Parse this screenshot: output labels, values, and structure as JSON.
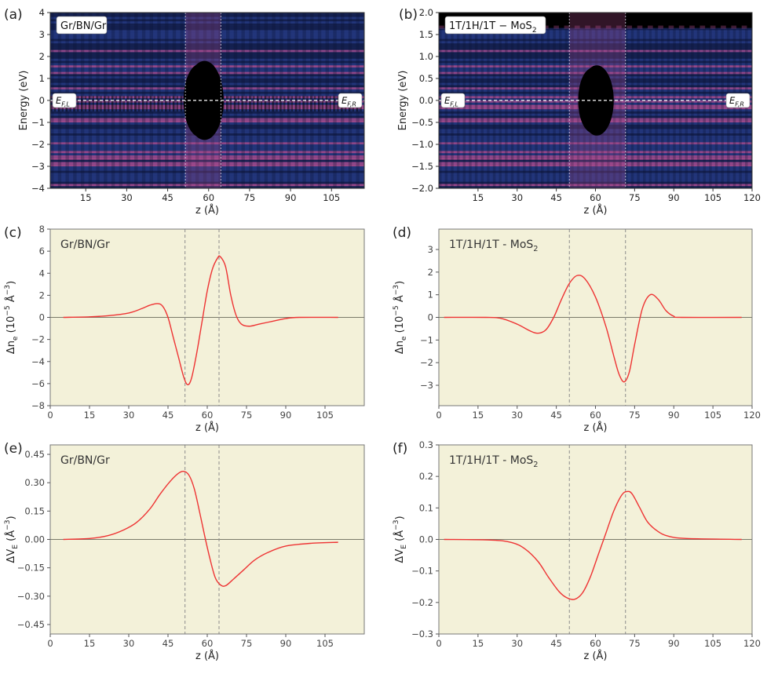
{
  "colors": {
    "panel_bg": "#f3f1d9",
    "curve": "#ee3333",
    "zero_line": "#7a7a6a",
    "dashed": "#8c8c8c",
    "heat_dark": "#0c1232",
    "heat_mid": "#22357a",
    "heat_pink": "#b04c8c",
    "heat_black": "#000000",
    "white": "#ffffff"
  },
  "chart_data": [
    {
      "panel": "(a)",
      "type": "heatmap",
      "label": "Gr/BN/Gr",
      "xlabel": "z (Å)",
      "ylabel": "Energy (eV)",
      "xlim": [
        2,
        117
      ],
      "ylim": [
        -4,
        4
      ],
      "xticks": [
        15,
        30,
        45,
        60,
        75,
        90,
        105
      ],
      "yticks": [
        -4,
        -3,
        -2,
        -1,
        0,
        1,
        2,
        3,
        4
      ],
      "ytick_labels": [
        "−4",
        "−3",
        "−2",
        "−1",
        "0",
        "1",
        "2",
        "3",
        "4"
      ],
      "fermi_left": "E_{F,L}",
      "fermi_right": "E_{F,R}",
      "fermi_energy": 0,
      "interfaces": [
        51.5,
        64.5
      ],
      "gap_region": {
        "z_center": 58.5,
        "z_halfwidth": 7,
        "e_min": -1.8,
        "e_max": 1.8
      },
      "stripe_period_E": 0.2,
      "ripple_period_z": 2.8,
      "fine_ripple_band": [
        -0.5,
        0.2
      ]
    },
    {
      "panel": "(b)",
      "type": "heatmap",
      "label": "1T/1H/1T − MoS2",
      "label_main": "1T/1H/1T − MoS",
      "label_sub": "2",
      "xlabel": "z (Å)",
      "ylabel": "Energy (eV)",
      "xlim": [
        0,
        120
      ],
      "ylim": [
        -2,
        2
      ],
      "xticks": [
        15,
        30,
        45,
        60,
        75,
        90,
        105,
        120
      ],
      "yticks": [
        -2.0,
        -1.5,
        -1.0,
        -0.5,
        0.0,
        0.5,
        1.0,
        1.5,
        2.0
      ],
      "ytick_labels": [
        "−2.0",
        "−1.5",
        "−1.0",
        "−0.5",
        "0.0",
        "0.5",
        "1.0",
        "1.5",
        "2.0"
      ],
      "fermi_left": "E_{F,L}",
      "fermi_right": "E_{F,R}",
      "fermi_energy": 0,
      "interfaces": [
        50.0,
        71.5
      ],
      "gap_region": {
        "z_center": 60.5,
        "z_halfwidth": 6.5,
        "e_min": -0.8,
        "e_max": 0.8
      },
      "top_gap_from": 1.65,
      "stripe_period_E": 0.1,
      "ripple_period_z": 2.3
    },
    {
      "panel": "(c)",
      "type": "line",
      "label": "Gr/BN/Gr",
      "xlabel": "z (Å)",
      "ylabel": "Δn_e (10^{−5} Å^{−3})",
      "xlim": [
        0,
        120
      ],
      "ylim": [
        -8,
        8
      ],
      "xticks": [
        0,
        15,
        30,
        45,
        60,
        75,
        90,
        105
      ],
      "yticks": [
        -8,
        -6,
        -4,
        -2,
        0,
        2,
        4,
        6,
        8
      ],
      "ytick_labels": [
        "−8",
        "−6",
        "−4",
        "−2",
        "0",
        "2",
        "4",
        "6",
        "8"
      ],
      "interfaces": [
        51.5,
        64.5
      ],
      "series": [
        {
          "name": "Δn_e",
          "x": [
            5,
            15,
            22,
            30,
            35,
            38,
            41,
            43,
            45,
            47,
            49,
            51,
            52.5,
            54,
            56,
            58,
            60,
            62,
            64,
            65,
            67,
            69,
            71,
            73,
            76,
            80,
            85,
            90,
            95,
            110
          ],
          "y": [
            0,
            0.05,
            0.15,
            0.4,
            0.8,
            1.1,
            1.25,
            1.0,
            0,
            -1.8,
            -3.6,
            -5.4,
            -6.1,
            -5.5,
            -3.2,
            -0.4,
            2.4,
            4.4,
            5.4,
            5.5,
            4.6,
            2.0,
            0.2,
            -0.6,
            -0.8,
            -0.6,
            -0.35,
            -0.1,
            0,
            0
          ]
        }
      ]
    },
    {
      "panel": "(d)",
      "type": "line",
      "label": "1T/1H/1T - MoS2",
      "label_main": "1T/1H/1T - MoS",
      "label_sub": "2",
      "xlabel": "z (Å)",
      "ylabel": "Δn_e (10^{−5} Å^{−3})",
      "xlim": [
        0,
        120
      ],
      "ylim": [
        -3.9,
        3.9
      ],
      "xticks": [
        0,
        15,
        30,
        45,
        60,
        75,
        90,
        105,
        120
      ],
      "yticks": [
        -3,
        -2,
        -1,
        0,
        1,
        2,
        3
      ],
      "ytick_labels": [
        "−3",
        "−2",
        "−1",
        "0",
        "1",
        "2",
        "3"
      ],
      "interfaces": [
        50.0,
        71.5
      ],
      "series": [
        {
          "name": "Δn_e",
          "x": [
            2,
            18,
            24,
            30,
            35,
            38,
            41,
            44,
            47,
            50,
            53,
            56,
            60,
            64,
            67,
            69,
            71,
            73,
            75,
            78,
            81,
            84,
            87,
            90,
            93,
            116
          ],
          "y": [
            0,
            0,
            -0.05,
            -0.3,
            -0.6,
            -0.7,
            -0.55,
            0,
            0.8,
            1.5,
            1.85,
            1.7,
            0.9,
            -0.4,
            -1.7,
            -2.5,
            -2.85,
            -2.4,
            -1.2,
            0.4,
            1.0,
            0.8,
            0.3,
            0.05,
            0,
            0
          ]
        }
      ]
    },
    {
      "panel": "(e)",
      "type": "line",
      "label": "Gr/BN/Gr",
      "xlabel": "z (Å)",
      "ylabel": "ΔV_E (Å^{−3})",
      "xlim": [
        0,
        120
      ],
      "ylim": [
        -0.5,
        0.5
      ],
      "xticks": [
        0,
        15,
        30,
        45,
        60,
        75,
        90,
        105
      ],
      "yticks": [
        -0.45,
        -0.3,
        -0.15,
        0.0,
        0.15,
        0.3,
        0.45
      ],
      "ytick_labels": [
        "−0.45",
        "−0.30",
        "−0.15",
        "0.00",
        "0.15",
        "0.30",
        "0.45"
      ],
      "interfaces": [
        51.5,
        64.5
      ],
      "series": [
        {
          "name": "ΔV_E",
          "x": [
            5,
            15,
            22,
            28,
            33,
            38,
            42,
            46,
            49,
            51,
            53,
            55,
            57,
            59,
            61,
            63,
            65,
            67,
            70,
            74,
            78,
            83,
            90,
            100,
            110
          ],
          "y": [
            0,
            0.005,
            0.02,
            0.05,
            0.09,
            0.16,
            0.24,
            0.31,
            0.35,
            0.36,
            0.34,
            0.27,
            0.15,
            0.02,
            -0.1,
            -0.2,
            -0.24,
            -0.245,
            -0.21,
            -0.16,
            -0.11,
            -0.07,
            -0.035,
            -0.02,
            -0.015
          ]
        }
      ]
    },
    {
      "panel": "(f)",
      "type": "line",
      "label": "1T/1H/1T - MoS2",
      "label_main": "1T/1H/1T - MoS",
      "label_sub": "2",
      "xlabel": "z (Å)",
      "ylabel": "ΔV_E (Å^{−3})",
      "xlim": [
        0,
        120
      ],
      "ylim": [
        -0.3,
        0.3
      ],
      "xticks": [
        0,
        15,
        30,
        45,
        60,
        75,
        90,
        105,
        120
      ],
      "yticks": [
        -0.3,
        -0.2,
        -0.1,
        0.0,
        0.1,
        0.2,
        0.3
      ],
      "ytick_labels": [
        "−0.3",
        "−0.2",
        "−0.1",
        "0.0",
        "0.1",
        "0.2",
        "0.3"
      ],
      "interfaces": [
        50.0,
        71.5
      ],
      "series": [
        {
          "name": "ΔV_E",
          "x": [
            2,
            20,
            28,
            33,
            38,
            42,
            46,
            49,
            52,
            55,
            58,
            61,
            64,
            67,
            70,
            72,
            74,
            77,
            80,
            84,
            88,
            95,
            116
          ],
          "y": [
            0,
            -0.002,
            -0.01,
            -0.03,
            -0.07,
            -0.12,
            -0.165,
            -0.185,
            -0.19,
            -0.17,
            -0.12,
            -0.05,
            0.02,
            0.09,
            0.14,
            0.152,
            0.145,
            0.1,
            0.055,
            0.025,
            0.01,
            0.003,
            0
          ]
        }
      ]
    }
  ]
}
